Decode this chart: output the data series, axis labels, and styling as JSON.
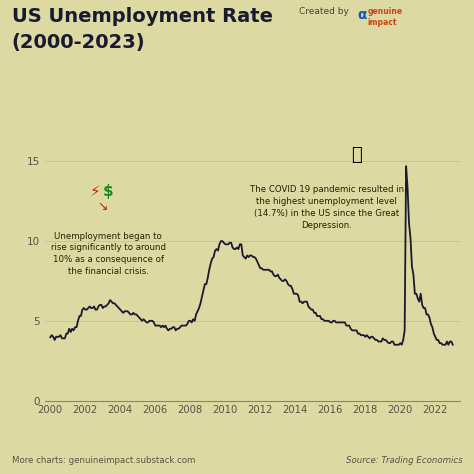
{
  "title_line1": "US Unemployment Rate",
  "title_line2": "(2000-2023)",
  "background_color": "#ddd9a3",
  "line_color": "#1a1a2e",
  "ylabel_ticks": [
    0,
    5,
    10,
    15
  ],
  "xticks": [
    2000,
    2002,
    2004,
    2006,
    2008,
    2010,
    2012,
    2014,
    2016,
    2018,
    2020,
    2022
  ],
  "footer_left": "More charts: genuineimpact.substack.com",
  "footer_right": "Source: Trading Economics",
  "annotation1_text": "Unemployment began to\nrise significantly to around\n10% as a consequence of\nthe financial crisis.",
  "annotation2_text": "The COVID 19 pandemic resulted in\nthe highest unemployment level\n(14.7%) in the US since the Great\nDepression.",
  "tick_color": "#555544",
  "grid_color": "#c8c49a",
  "spine_color": "#888866",
  "years": [
    2000.0,
    2000.083,
    2000.167,
    2000.25,
    2000.333,
    2000.417,
    2000.5,
    2000.583,
    2000.667,
    2000.75,
    2000.833,
    2000.917,
    2001.0,
    2001.083,
    2001.167,
    2001.25,
    2001.333,
    2001.417,
    2001.5,
    2001.583,
    2001.667,
    2001.75,
    2001.833,
    2001.917,
    2002.0,
    2002.083,
    2002.167,
    2002.25,
    2002.333,
    2002.417,
    2002.5,
    2002.583,
    2002.667,
    2002.75,
    2002.833,
    2002.917,
    2003.0,
    2003.083,
    2003.167,
    2003.25,
    2003.333,
    2003.417,
    2003.5,
    2003.583,
    2003.667,
    2003.75,
    2003.833,
    2003.917,
    2004.0,
    2004.083,
    2004.167,
    2004.25,
    2004.333,
    2004.417,
    2004.5,
    2004.583,
    2004.667,
    2004.75,
    2004.833,
    2004.917,
    2005.0,
    2005.083,
    2005.167,
    2005.25,
    2005.333,
    2005.417,
    2005.5,
    2005.583,
    2005.667,
    2005.75,
    2005.833,
    2005.917,
    2006.0,
    2006.083,
    2006.167,
    2006.25,
    2006.333,
    2006.417,
    2006.5,
    2006.583,
    2006.667,
    2006.75,
    2006.833,
    2006.917,
    2007.0,
    2007.083,
    2007.167,
    2007.25,
    2007.333,
    2007.417,
    2007.5,
    2007.583,
    2007.667,
    2007.75,
    2007.833,
    2007.917,
    2008.0,
    2008.083,
    2008.167,
    2008.25,
    2008.333,
    2008.417,
    2008.5,
    2008.583,
    2008.667,
    2008.75,
    2008.833,
    2008.917,
    2009.0,
    2009.083,
    2009.167,
    2009.25,
    2009.333,
    2009.417,
    2009.5,
    2009.583,
    2009.667,
    2009.75,
    2009.833,
    2009.917,
    2010.0,
    2010.083,
    2010.167,
    2010.25,
    2010.333,
    2010.417,
    2010.5,
    2010.583,
    2010.667,
    2010.75,
    2010.833,
    2010.917,
    2011.0,
    2011.083,
    2011.167,
    2011.25,
    2011.333,
    2011.417,
    2011.5,
    2011.583,
    2011.667,
    2011.75,
    2011.833,
    2011.917,
    2012.0,
    2012.083,
    2012.167,
    2012.25,
    2012.333,
    2012.417,
    2012.5,
    2012.583,
    2012.667,
    2012.75,
    2012.833,
    2012.917,
    2013.0,
    2013.083,
    2013.167,
    2013.25,
    2013.333,
    2013.417,
    2013.5,
    2013.583,
    2013.667,
    2013.75,
    2013.833,
    2013.917,
    2014.0,
    2014.083,
    2014.167,
    2014.25,
    2014.333,
    2014.417,
    2014.5,
    2014.583,
    2014.667,
    2014.75,
    2014.833,
    2014.917,
    2015.0,
    2015.083,
    2015.167,
    2015.25,
    2015.333,
    2015.417,
    2015.5,
    2015.583,
    2015.667,
    2015.75,
    2015.833,
    2015.917,
    2016.0,
    2016.083,
    2016.167,
    2016.25,
    2016.333,
    2016.417,
    2016.5,
    2016.583,
    2016.667,
    2016.75,
    2016.833,
    2016.917,
    2017.0,
    2017.083,
    2017.167,
    2017.25,
    2017.333,
    2017.417,
    2017.5,
    2017.583,
    2017.667,
    2017.75,
    2017.833,
    2017.917,
    2018.0,
    2018.083,
    2018.167,
    2018.25,
    2018.333,
    2018.417,
    2018.5,
    2018.583,
    2018.667,
    2018.75,
    2018.833,
    2018.917,
    2019.0,
    2019.083,
    2019.167,
    2019.25,
    2019.333,
    2019.417,
    2019.5,
    2019.583,
    2019.667,
    2019.75,
    2019.833,
    2019.917,
    2020.0,
    2020.083,
    2020.167,
    2020.25,
    2020.333,
    2020.417,
    2020.5,
    2020.583,
    2020.667,
    2020.75,
    2020.833,
    2020.917,
    2021.0,
    2021.083,
    2021.167,
    2021.25,
    2021.333,
    2021.417,
    2021.5,
    2021.583,
    2021.667,
    2021.75,
    2021.833,
    2021.917,
    2022.0,
    2022.083,
    2022.167,
    2022.25,
    2022.333,
    2022.417,
    2022.5,
    2022.583,
    2022.667,
    2022.75,
    2022.833,
    2022.917,
    2023.0
  ],
  "values": [
    3.97,
    4.1,
    4.0,
    3.8,
    4.0,
    4.0,
    4.0,
    4.1,
    3.9,
    3.9,
    3.9,
    4.2,
    4.2,
    4.5,
    4.3,
    4.5,
    4.4,
    4.6,
    4.6,
    5.0,
    5.3,
    5.3,
    5.7,
    5.8,
    5.7,
    5.7,
    5.8,
    5.9,
    5.8,
    5.8,
    5.9,
    5.7,
    5.7,
    5.9,
    6.0,
    6.0,
    5.8,
    5.9,
    5.9,
    6.0,
    6.1,
    6.3,
    6.2,
    6.1,
    6.1,
    6.0,
    5.9,
    5.8,
    5.7,
    5.6,
    5.5,
    5.6,
    5.6,
    5.6,
    5.5,
    5.4,
    5.4,
    5.5,
    5.4,
    5.4,
    5.3,
    5.2,
    5.1,
    5.0,
    5.1,
    5.0,
    4.9,
    4.9,
    5.0,
    5.0,
    5.0,
    4.9,
    4.7,
    4.7,
    4.7,
    4.7,
    4.6,
    4.7,
    4.6,
    4.7,
    4.5,
    4.4,
    4.5,
    4.5,
    4.6,
    4.6,
    4.4,
    4.5,
    4.5,
    4.6,
    4.7,
    4.7,
    4.7,
    4.7,
    4.8,
    5.0,
    5.0,
    4.9,
    5.1,
    5.0,
    5.4,
    5.6,
    5.8,
    6.1,
    6.5,
    6.9,
    7.3,
    7.3,
    7.7,
    8.2,
    8.6,
    8.9,
    9.0,
    9.4,
    9.5,
    9.4,
    9.8,
    10.0,
    10.0,
    9.9,
    9.8,
    9.8,
    9.8,
    9.9,
    9.9,
    9.6,
    9.5,
    9.5,
    9.6,
    9.5,
    9.8,
    9.8,
    9.1,
    9.0,
    8.9,
    9.1,
    9.0,
    9.1,
    9.1,
    9.0,
    9.0,
    8.9,
    8.7,
    8.5,
    8.3,
    8.3,
    8.2,
    8.2,
    8.2,
    8.2,
    8.2,
    8.1,
    8.1,
    7.9,
    7.8,
    7.8,
    7.9,
    7.7,
    7.6,
    7.5,
    7.5,
    7.6,
    7.5,
    7.3,
    7.2,
    7.2,
    7.0,
    6.7,
    6.7,
    6.7,
    6.6,
    6.2,
    6.2,
    6.1,
    6.2,
    6.2,
    6.2,
    5.9,
    5.8,
    5.7,
    5.7,
    5.5,
    5.5,
    5.3,
    5.3,
    5.3,
    5.1,
    5.1,
    5.0,
    5.0,
    5.0,
    5.0,
    4.9,
    4.9,
    5.0,
    5.0,
    4.9,
    4.9,
    4.9,
    4.9,
    4.9,
    4.9,
    4.9,
    4.7,
    4.7,
    4.7,
    4.5,
    4.4,
    4.4,
    4.4,
    4.4,
    4.2,
    4.2,
    4.1,
    4.1,
    4.1,
    4.0,
    4.1,
    4.0,
    3.9,
    4.0,
    4.0,
    3.9,
    3.8,
    3.8,
    3.7,
    3.7,
    3.7,
    3.9,
    3.8,
    3.8,
    3.7,
    3.6,
    3.6,
    3.7,
    3.7,
    3.5,
    3.5,
    3.5,
    3.5,
    3.6,
    3.5,
    3.8,
    4.4,
    14.7,
    13.3,
    11.1,
    10.2,
    8.4,
    7.9,
    6.7,
    6.7,
    6.4,
    6.2,
    6.7,
    6.0,
    5.8,
    5.8,
    5.4,
    5.4,
    5.2,
    4.8,
    4.6,
    4.2,
    4.0,
    3.8,
    3.8,
    3.6,
    3.6,
    3.5,
    3.5,
    3.5,
    3.7,
    3.5,
    3.7,
    3.7,
    3.5
  ]
}
